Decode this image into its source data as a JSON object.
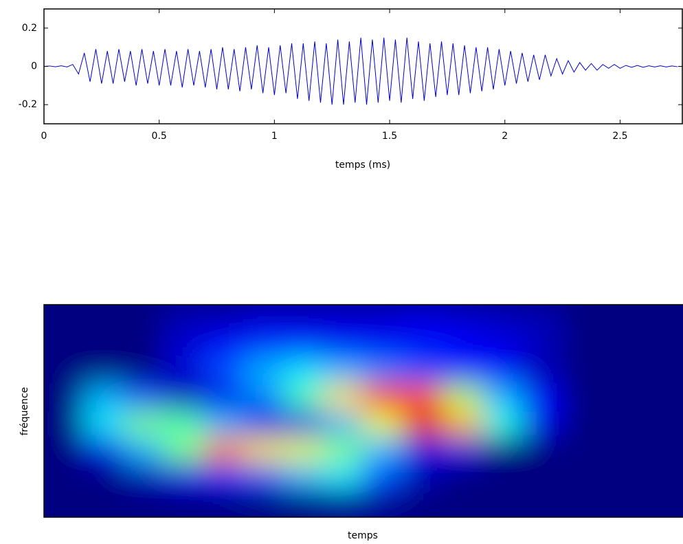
{
  "chart_data": [
    {
      "type": "line",
      "xlabel": "temps (ms)",
      "color": "#0000cc",
      "xlim": [
        0,
        2.77
      ],
      "ylim": [
        -0.3,
        0.3
      ],
      "xticks": [
        0,
        0.5,
        1,
        1.5,
        2,
        2.5
      ],
      "yticks": [
        -0.2,
        0,
        0.2
      ],
      "x": [
        0,
        0.025,
        0.05,
        0.075,
        0.1,
        0.125,
        0.15,
        0.175,
        0.2,
        0.225,
        0.25,
        0.275,
        0.3,
        0.325,
        0.35,
        0.375,
        0.4,
        0.425,
        0.45,
        0.475,
        0.5,
        0.525,
        0.55,
        0.575,
        0.6,
        0.625,
        0.65,
        0.675,
        0.7,
        0.725,
        0.75,
        0.775,
        0.8,
        0.825,
        0.85,
        0.875,
        0.9,
        0.925,
        0.95,
        0.975,
        1,
        1.025,
        1.05,
        1.075,
        1.1,
        1.125,
        1.15,
        1.175,
        1.2,
        1.225,
        1.25,
        1.275,
        1.3,
        1.325,
        1.35,
        1.375,
        1.4,
        1.425,
        1.45,
        1.475,
        1.5,
        1.525,
        1.55,
        1.575,
        1.6,
        1.625,
        1.65,
        1.675,
        1.7,
        1.725,
        1.75,
        1.775,
        1.8,
        1.825,
        1.85,
        1.875,
        1.9,
        1.925,
        1.95,
        1.975,
        2,
        2.025,
        2.05,
        2.075,
        2.1,
        2.125,
        2.15,
        2.175,
        2.2,
        2.225,
        2.25,
        2.275,
        2.3,
        2.325,
        2.35,
        2.375,
        2.4,
        2.425,
        2.45,
        2.475,
        2.5,
        2.525,
        2.55,
        2.575,
        2.6,
        2.625,
        2.65,
        2.675,
        2.7,
        2.725,
        2.75
      ],
      "values": [
        0,
        0.002,
        -0.002,
        0.003,
        -0.003,
        0.01,
        -0.04,
        0.07,
        -0.08,
        0.09,
        -0.09,
        0.08,
        -0.09,
        0.09,
        -0.08,
        0.08,
        -0.1,
        0.09,
        -0.09,
        0.08,
        -0.1,
        0.09,
        -0.1,
        0.08,
        -0.11,
        0.09,
        -0.1,
        0.08,
        -0.11,
        0.09,
        -0.12,
        0.1,
        -0.12,
        0.09,
        -0.13,
        0.1,
        -0.12,
        0.11,
        -0.14,
        0.1,
        -0.15,
        0.11,
        -0.14,
        0.12,
        -0.17,
        0.12,
        -0.18,
        0.13,
        -0.19,
        0.12,
        -0.2,
        0.14,
        -0.2,
        0.13,
        -0.19,
        0.15,
        -0.2,
        0.14,
        -0.19,
        0.15,
        -0.18,
        0.14,
        -0.19,
        0.15,
        -0.17,
        0.13,
        -0.18,
        0.12,
        -0.16,
        0.13,
        -0.15,
        0.12,
        -0.15,
        0.11,
        -0.14,
        0.1,
        -0.13,
        0.1,
        -0.12,
        0.09,
        -0.1,
        0.08,
        -0.09,
        0.07,
        -0.08,
        0.06,
        -0.07,
        0.06,
        -0.05,
        0.04,
        -0.04,
        0.03,
        -0.03,
        0.02,
        -0.02,
        0.015,
        -0.02,
        0.01,
        -0.01,
        0.01,
        -0.01,
        0.005,
        -0.005,
        0.005,
        -0.005,
        0.003,
        -0.003,
        0.003,
        -0.003,
        0.002,
        -0.002
      ]
    },
    {
      "type": "heatmap",
      "xlabel": "temps",
      "ylabel": "fréquence",
      "colormap": "jet",
      "z": [
        [
          0,
          0,
          0,
          0.05,
          0.05,
          0.08,
          0.08,
          0.08,
          0.08,
          0.1,
          0.08,
          0.06,
          0.05,
          0,
          0,
          0
        ],
        [
          0,
          0,
          0,
          0.08,
          0.12,
          0.15,
          0.15,
          0.12,
          0.12,
          0.12,
          0.12,
          0.1,
          0.06,
          0,
          0,
          0
        ],
        [
          0,
          0,
          0,
          0.08,
          0.2,
          0.3,
          0.35,
          0.3,
          0.25,
          0.2,
          0.15,
          0.12,
          0.05,
          0,
          0,
          0
        ],
        [
          0,
          0.3,
          0.2,
          0.05,
          0.1,
          0.25,
          0.45,
          0.65,
          0.85,
          0.8,
          0.55,
          0.3,
          0.12,
          0,
          0,
          0
        ],
        [
          0,
          0.35,
          0.5,
          0.45,
          0.3,
          0.1,
          0.1,
          0.3,
          0.6,
          0.9,
          0.7,
          0.4,
          0.1,
          0,
          0,
          0
        ],
        [
          0,
          0.1,
          0.3,
          0.5,
          0.75,
          0.65,
          0.6,
          0.5,
          0.3,
          0.1,
          0.1,
          0,
          0,
          0,
          0,
          0
        ],
        [
          0,
          0,
          0.05,
          0.1,
          0.15,
          0.2,
          0.3,
          0.35,
          0.2,
          0.05,
          0,
          0,
          0,
          0,
          0,
          0
        ],
        [
          0,
          0,
          0,
          0,
          0,
          0,
          0,
          0.02,
          0.02,
          0,
          0,
          0,
          0,
          0,
          0,
          0
        ]
      ]
    }
  ]
}
